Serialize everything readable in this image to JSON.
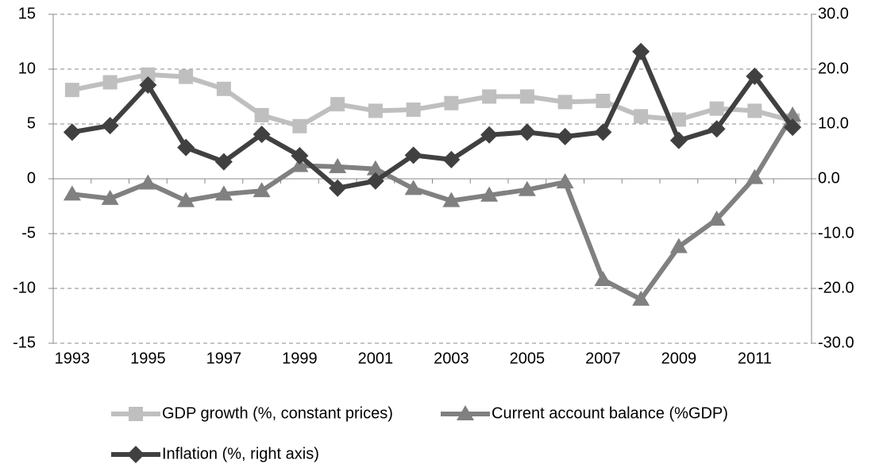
{
  "chart_data": {
    "type": "line",
    "x": [
      1993,
      1994,
      1995,
      1996,
      1997,
      1998,
      1999,
      2000,
      2001,
      2002,
      2003,
      2004,
      2005,
      2006,
      2007,
      2008,
      2009,
      2010,
      2011,
      2012
    ],
    "xlim": [
      1992.5,
      2012.5
    ],
    "xticks": [
      1993,
      1995,
      1997,
      1999,
      2001,
      2003,
      2005,
      2007,
      2009,
      2011
    ],
    "ylim": [
      -15,
      15
    ],
    "yticks": [
      -15,
      -10,
      -5,
      0,
      5,
      10,
      15
    ],
    "y2lim": [
      -30,
      30
    ],
    "y2ticks": [
      {
        "value": -30,
        "label": "-30.0"
      },
      {
        "value": -20,
        "label": "-20.0"
      },
      {
        "value": -10,
        "label": "-10.0"
      },
      {
        "value": 0,
        "label": "0.0"
      },
      {
        "value": 10,
        "label": "10.0"
      },
      {
        "value": 20,
        "label": "20.0"
      },
      {
        "value": 30,
        "label": "30.0"
      }
    ],
    "grid": true,
    "legend": "bottom",
    "series": [
      {
        "name": "GDP growth (%, constant prices)",
        "color": "#bfbfbf",
        "marker": "square",
        "values": [
          8.1,
          8.8,
          9.5,
          9.3,
          8.2,
          5.8,
          4.8,
          6.8,
          6.2,
          6.3,
          6.9,
          7.5,
          7.5,
          7.0,
          7.1,
          5.7,
          5.4,
          6.4,
          6.2,
          5.3
        ]
      },
      {
        "name": "Current account balance (%GDP)",
        "color": "#808080",
        "marker": "triangle",
        "values": [
          -1.4,
          -1.8,
          -0.4,
          -2.0,
          -1.4,
          -1.1,
          1.2,
          1.1,
          0.9,
          -0.9,
          -2.0,
          -1.5,
          -1.0,
          -0.3,
          -9.2,
          -11.0,
          -6.2,
          -3.7,
          0.1,
          5.8
        ]
      },
      {
        "name": "Inflation (%, right axis)",
        "color": "#404040",
        "marker": "diamond",
        "axis": "y2",
        "values": [
          8.5,
          9.7,
          17.1,
          5.7,
          3.1,
          8.1,
          4.2,
          -1.7,
          -0.4,
          4.3,
          3.5,
          8.0,
          8.5,
          7.7,
          8.5,
          23.2,
          7.0,
          9.1,
          18.7,
          9.4
        ]
      }
    ]
  }
}
